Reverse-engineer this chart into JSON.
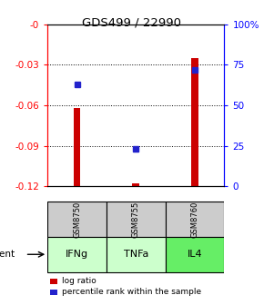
{
  "title": "GDS499 / 22990",
  "samples": [
    "GSM8750",
    "GSM8755",
    "GSM8760"
  ],
  "agents": [
    "IFNg",
    "TNFa",
    "IL4"
  ],
  "log_ratio_bottoms": [
    -0.12,
    -0.12,
    -0.12
  ],
  "log_ratio_tops": [
    -0.062,
    -0.118,
    -0.025
  ],
  "percentile_ranks": [
    63,
    23,
    72
  ],
  "ylim_left": [
    -0.12,
    0.0
  ],
  "ylim_right": [
    0,
    100
  ],
  "left_ticks": [
    0.0,
    -0.03,
    -0.06,
    -0.09,
    -0.12
  ],
  "right_ticks": [
    100,
    75,
    50,
    25,
    0
  ],
  "bar_color": "#cc0000",
  "dot_color": "#2222cc",
  "gsm_bg": "#cccccc",
  "agent_colors": [
    "#ccffcc",
    "#ccffcc",
    "#66ee66"
  ],
  "legend_bar_color": "#cc0000",
  "legend_dot_color": "#2222cc",
  "bar_width": 0.12
}
